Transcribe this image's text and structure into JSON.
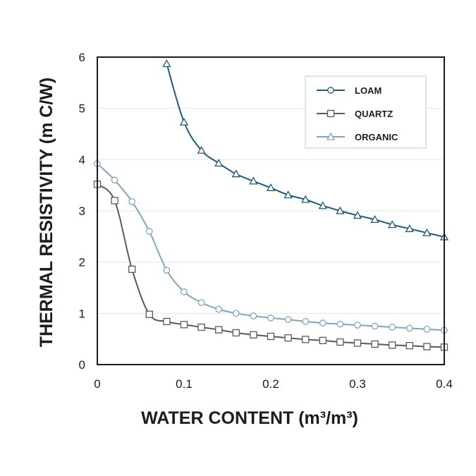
{
  "chart_data": {
    "type": "line",
    "xlabel": "WATER CONTENT (m³/m³)",
    "ylabel": "THERMAL RESISTIVITY (m C/W)",
    "xlim": [
      0,
      0.4
    ],
    "ylim": [
      0,
      6
    ],
    "x_ticks": [
      "0",
      "0.1",
      "0.2",
      "0.3",
      "0.4"
    ],
    "y_ticks": [
      "0",
      "1",
      "2",
      "3",
      "4",
      "5",
      "6"
    ],
    "grid": "horizontal",
    "legend_position": "top-right",
    "series": [
      {
        "name": "LOAM",
        "marker": "triangle",
        "legend_marker": "circle",
        "color": "#1f5a7f",
        "x": [
          0.08,
          0.1,
          0.12,
          0.14,
          0.16,
          0.18,
          0.2,
          0.22,
          0.24,
          0.26,
          0.28,
          0.3,
          0.32,
          0.34,
          0.36,
          0.38,
          0.4
        ],
        "y": [
          5.87,
          4.73,
          4.18,
          3.93,
          3.72,
          3.58,
          3.45,
          3.31,
          3.22,
          3.1,
          3.0,
          2.91,
          2.83,
          2.73,
          2.65,
          2.57,
          2.49
        ]
      },
      {
        "name": "QUARTZ",
        "marker": "square",
        "legend_marker": "square",
        "color": "#5a5a5a",
        "x": [
          0,
          0.02,
          0.04,
          0.06,
          0.08,
          0.1,
          0.12,
          0.14,
          0.16,
          0.18,
          0.2,
          0.22,
          0.24,
          0.26,
          0.28,
          0.3,
          0.32,
          0.34,
          0.36,
          0.38,
          0.4
        ],
        "y": [
          3.52,
          3.2,
          1.86,
          0.98,
          0.84,
          0.78,
          0.73,
          0.68,
          0.62,
          0.58,
          0.55,
          0.52,
          0.49,
          0.47,
          0.44,
          0.42,
          0.4,
          0.38,
          0.37,
          0.35,
          0.34
        ]
      },
      {
        "name": "ORGANIC",
        "marker": "circle",
        "legend_marker": "triangle",
        "color": "#7fa6bf",
        "x": [
          0,
          0.02,
          0.04,
          0.06,
          0.08,
          0.1,
          0.12,
          0.14,
          0.16,
          0.18,
          0.2,
          0.22,
          0.24,
          0.26,
          0.28,
          0.3,
          0.32,
          0.34,
          0.36,
          0.38,
          0.4
        ],
        "y": [
          3.92,
          3.6,
          3.18,
          2.6,
          1.84,
          1.42,
          1.21,
          1.08,
          1.0,
          0.95,
          0.91,
          0.88,
          0.84,
          0.81,
          0.79,
          0.77,
          0.75,
          0.73,
          0.71,
          0.69,
          0.67
        ]
      }
    ]
  }
}
